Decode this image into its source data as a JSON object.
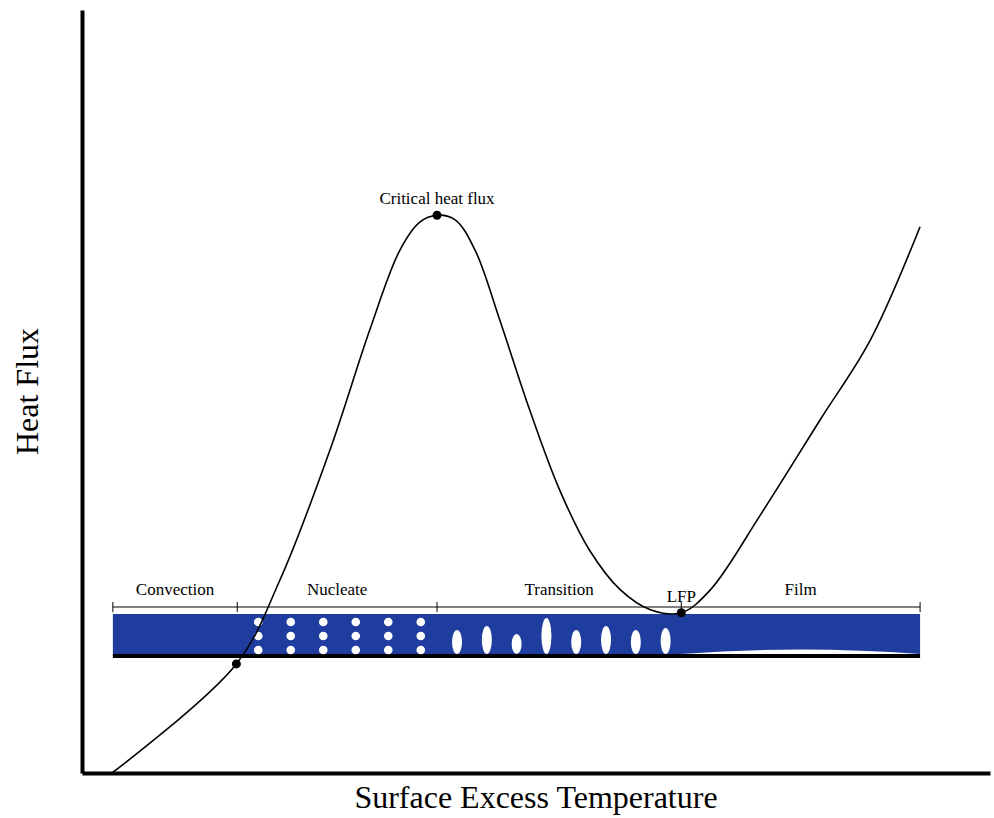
{
  "chart_data": {
    "type": "line",
    "x_label": "Surface Excess Temperature",
    "y_label": "Heat Flux",
    "xlim": [
      0,
      100
    ],
    "ylim": [
      0,
      100
    ],
    "xticks": [],
    "yticks": [],
    "tick_labels": false,
    "grid": false,
    "color": "#000000",
    "x": [
      3.3,
      17.0,
      21.8,
      27.3,
      31.7,
      35.0,
      37.2,
      39.1,
      41.1,
      43.3,
      46.0,
      49.3,
      52.6,
      55.9,
      59.3,
      62.6,
      66.0,
      69.2,
      74.7,
      81.3,
      86.8,
      92.3
    ],
    "values": [
      0,
      14.3,
      25.3,
      42.3,
      58.1,
      68.5,
      72.2,
      73.1,
      72.5,
      68.5,
      59.4,
      47.6,
      37.1,
      29.2,
      24.0,
      21.4,
      21.0,
      24.0,
      33.8,
      46.3,
      56.7,
      71.6
    ],
    "annotations": [
      {
        "x": 17.0,
        "y": 14.3
      },
      {
        "text": "Critical heat flux",
        "x": 39.1,
        "y": 73.1
      },
      {
        "text": "LFP",
        "x": 66.0,
        "y": 21.0
      }
    ],
    "regions": [
      {
        "label": "Convection",
        "start": 3.4,
        "end": 17.1
      },
      {
        "label": "Nucleate",
        "start": 17.1,
        "end": 39.1
      },
      {
        "label": "Transition",
        "start": 39.1,
        "end": 66.0
      },
      {
        "label": "Film",
        "start": 66.0,
        "end": 92.3
      }
    ]
  }
}
